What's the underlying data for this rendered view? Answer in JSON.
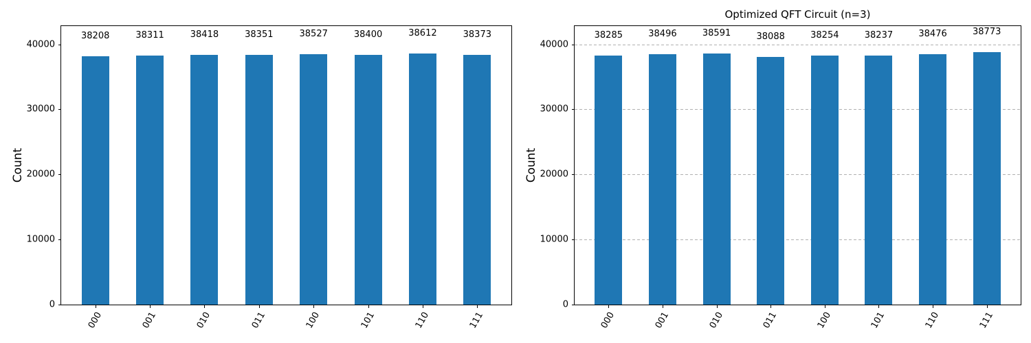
{
  "figure": {
    "background": "#ffffff",
    "bar_color": "#1f77b4",
    "grid_color": "#b0b0b0",
    "text_color": "#000000"
  },
  "chart_data": [
    {
      "type": "bar",
      "title": "",
      "categories": [
        "000",
        "001",
        "010",
        "011",
        "100",
        "101",
        "110",
        "111"
      ],
      "values": [
        38208,
        38311,
        38418,
        38351,
        38527,
        38400,
        38612,
        38373
      ],
      "xlabel": "",
      "ylabel": "Count",
      "yticks": [
        0,
        10000,
        20000,
        30000,
        40000
      ],
      "ylim": [
        0,
        42800
      ],
      "grid": false,
      "value_labels": true,
      "bar_color": "#1f77b4"
    },
    {
      "type": "bar",
      "title": "Optimized QFT Circuit (n=3)",
      "categories": [
        "000",
        "001",
        "010",
        "011",
        "100",
        "101",
        "110",
        "111"
      ],
      "values": [
        38285,
        38496,
        38591,
        38088,
        38254,
        38237,
        38476,
        38773
      ],
      "xlabel": "",
      "ylabel": "Count",
      "yticks": [
        0,
        10000,
        20000,
        30000,
        40000
      ],
      "ylim": [
        0,
        42800
      ],
      "grid": true,
      "grid_style": "dashed",
      "legend": "none",
      "value_labels": true,
      "bar_color": "#1f77b4"
    }
  ]
}
